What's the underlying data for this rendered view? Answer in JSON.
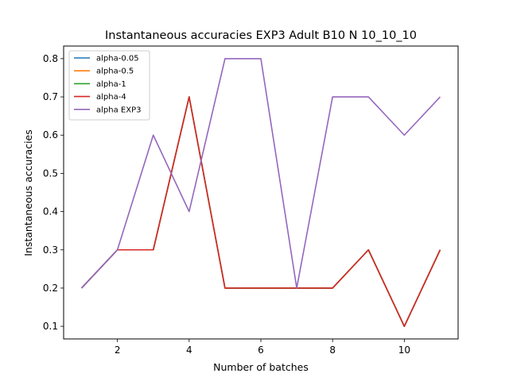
{
  "chart_data": {
    "type": "line",
    "title": "Instantaneous accuracies EXP3 Adult B10 N 10_10_10",
    "xlabel": "Number of batches",
    "ylabel": "Instantaneous accuracies",
    "xlim": [
      0.5,
      11.5
    ],
    "ylim": [
      0.067,
      0.833
    ],
    "xticks": [
      2,
      4,
      6,
      8,
      10
    ],
    "yticks": [
      0.1,
      0.2,
      0.3,
      0.4,
      0.5,
      0.6,
      0.7,
      0.8
    ],
    "grid": false,
    "legend_position": "top-left",
    "x": [
      1,
      2,
      3,
      4,
      5,
      6,
      7,
      8,
      9,
      10,
      11
    ],
    "series": [
      {
        "name": "alpha-0.05",
        "color": "#1f77b4",
        "values": [
          0.2,
          0.3,
          0.3,
          0.7,
          0.2,
          0.2,
          0.2,
          0.2,
          0.3,
          0.1,
          0.3
        ]
      },
      {
        "name": "alpha-0.5",
        "color": "#ff7f0e",
        "values": [
          0.2,
          0.3,
          0.3,
          0.7,
          0.2,
          0.2,
          0.2,
          0.2,
          0.3,
          0.1,
          0.3
        ]
      },
      {
        "name": "alpha-1",
        "color": "#2ca02c",
        "values": [
          0.2,
          0.3,
          0.3,
          0.7,
          0.2,
          0.2,
          0.2,
          0.2,
          0.3,
          0.1,
          0.3
        ]
      },
      {
        "name": "alpha-4",
        "color": "#d62728",
        "values": [
          0.2,
          0.3,
          0.3,
          0.7,
          0.2,
          0.2,
          0.2,
          0.2,
          0.3,
          0.1,
          0.3
        ]
      },
      {
        "name": "alpha EXP3",
        "color": "#9467bd",
        "values": [
          0.2,
          0.3,
          0.6,
          0.4,
          0.8,
          0.8,
          0.2,
          0.7,
          0.7,
          0.6,
          0.7
        ]
      }
    ]
  }
}
